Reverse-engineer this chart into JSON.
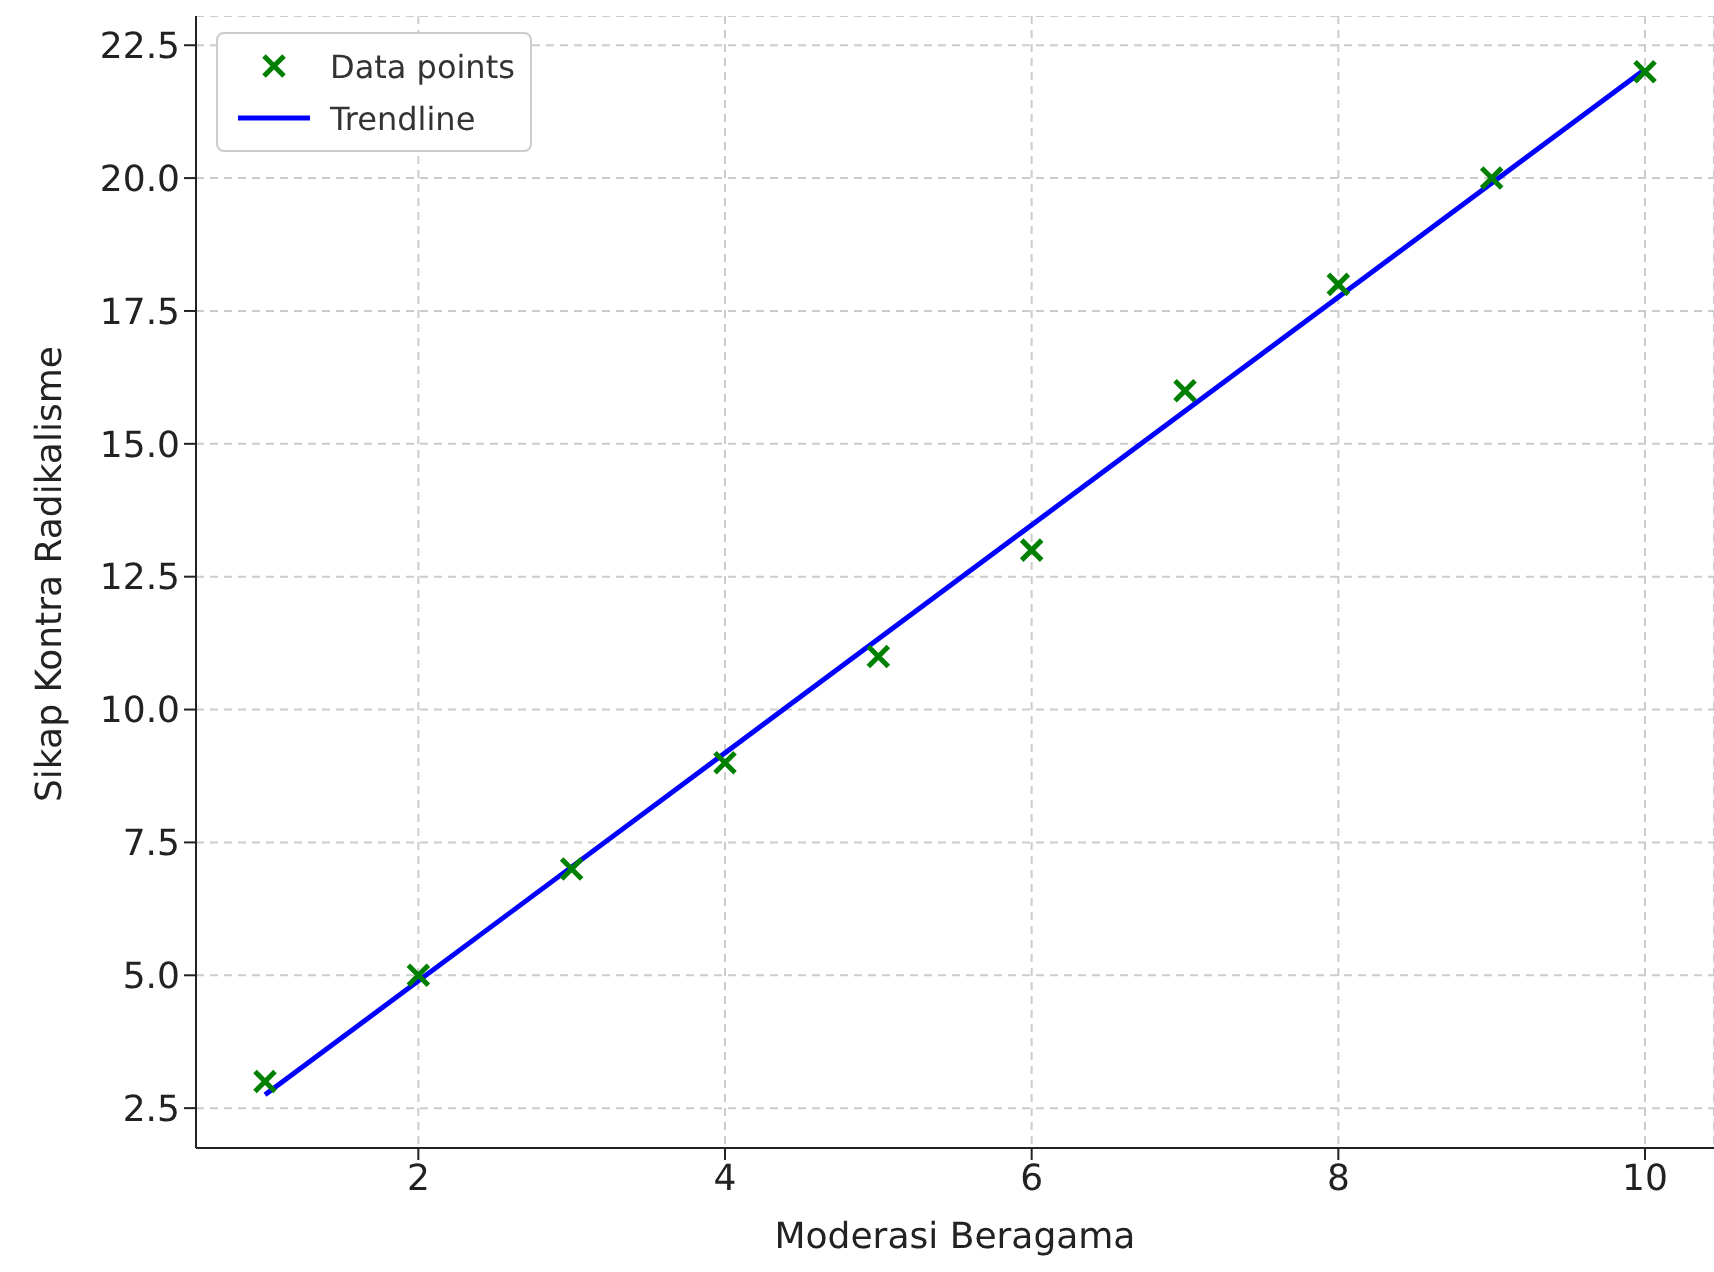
{
  "chart_data": {
    "type": "scatter",
    "xlabel": "Moderasi Beragama",
    "ylabel": "Sikap Kontra Radikalisme",
    "xlim": [
      0.55,
      10.45
    ],
    "xticks": [
      2,
      4,
      6,
      8,
      10
    ],
    "ylim": [
      1.75,
      23.05
    ],
    "yticks": [
      2.5,
      {
        "value": 5,
        "label": "5.0"
      },
      7.5,
      {
        "value": 10,
        "label": "10.0"
      },
      12.5,
      {
        "value": 15,
        "label": "15.0"
      },
      17.5,
      {
        "value": 20,
        "label": "20.0"
      },
      22.5
    ],
    "grid": true,
    "legend": "top left",
    "series": [
      {
        "name": "Data points",
        "marker": "cross",
        "color": "#008000",
        "x": [
          1,
          2,
          3,
          4,
          5,
          6,
          7,
          8,
          9,
          10
        ],
        "values": [
          3,
          5,
          7,
          9,
          11,
          13,
          16,
          18,
          20,
          22
        ]
      },
      {
        "name": "Trendline",
        "type": "line",
        "marker": "none",
        "color": "#0000ff",
        "x": [
          1,
          10
        ],
        "values": [
          2.75,
          22.05
        ]
      }
    ]
  }
}
